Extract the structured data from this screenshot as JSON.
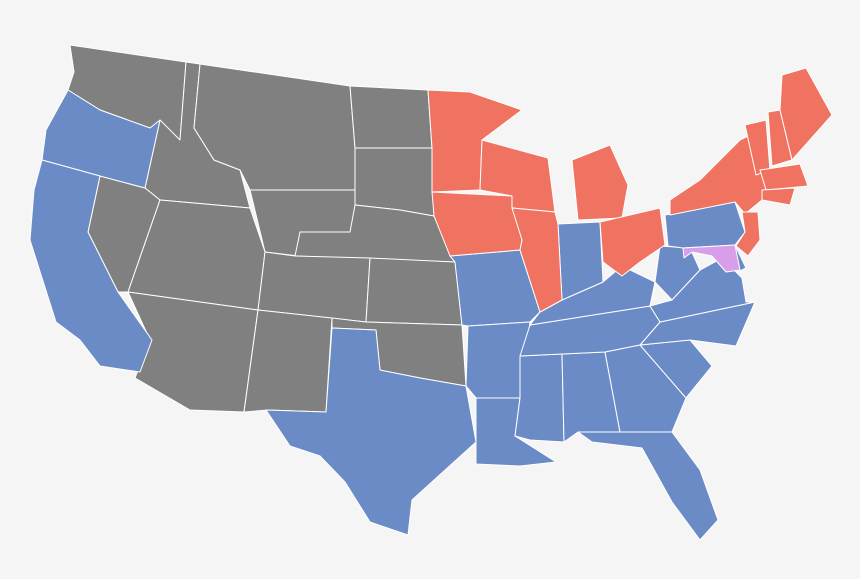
{
  "map": {
    "background": "#f5f5f5",
    "border_color": "#ffffff",
    "colors": {
      "gray": "#808080",
      "blue": "#6a8bc6",
      "red": "#f07361",
      "purple": "#d99ee9"
    }
  }
}
